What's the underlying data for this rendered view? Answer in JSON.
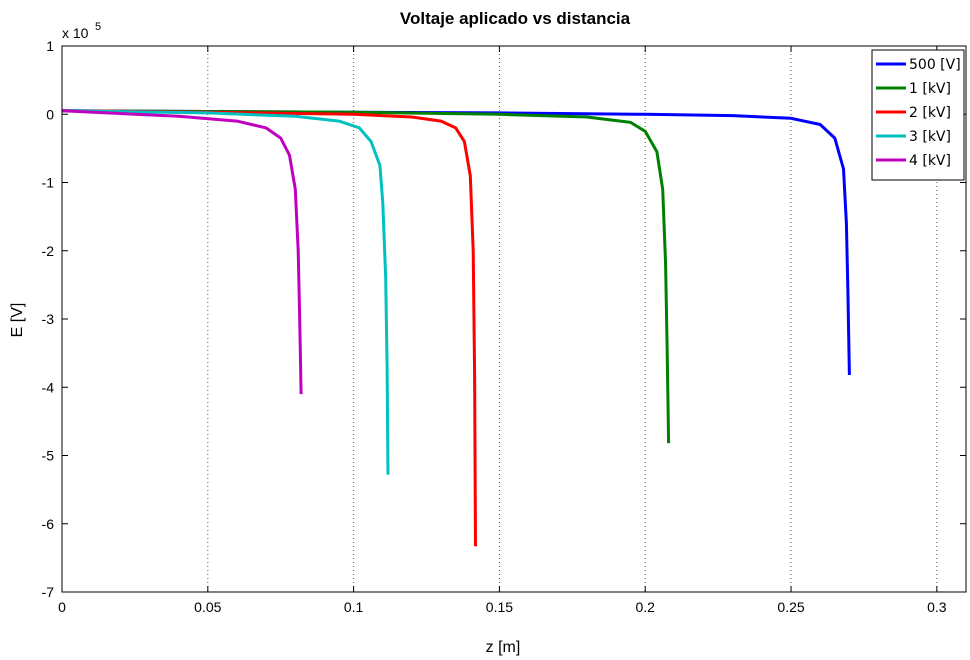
{
  "chart_data": {
    "type": "line",
    "title": "Voltaje aplicado vs distancia",
    "xlabel": "z [m]",
    "ylabel": "E [V]",
    "xlim": [
      0,
      0.31
    ],
    "ylim": [
      -7,
      1
    ],
    "y_multiplier_label": "x 10",
    "y_multiplier_exponent": "5",
    "x_ticks": [
      0,
      0.05,
      0.1,
      0.15,
      0.2,
      0.25,
      0.3
    ],
    "x_tick_labels": [
      "0",
      "0.05",
      "0.1",
      "0.15",
      "0.2",
      "0.25",
      "0.3"
    ],
    "y_ticks": [
      1,
      0,
      -1,
      -2,
      -3,
      -4,
      -5,
      -6,
      -7
    ],
    "y_tick_labels": [
      "1",
      "0",
      "-1",
      "-2",
      "-3",
      "-4",
      "-5",
      "-6",
      "-7"
    ],
    "grid": {
      "x": "dotted",
      "y": "none"
    },
    "legend_position": "top-right",
    "series": [
      {
        "name": "500 [V]",
        "color": "#0000ff",
        "x": [
          0,
          0.05,
          0.1,
          0.15,
          0.2,
          0.23,
          0.25,
          0.26,
          0.265,
          0.268,
          0.269,
          0.2695,
          0.27
        ],
        "y": [
          0.05,
          0.04,
          0.03,
          0.02,
          0.0,
          -0.02,
          -0.06,
          -0.15,
          -0.35,
          -0.8,
          -1.6,
          -2.6,
          -3.82
        ]
      },
      {
        "name": "1 [kV]",
        "color": "#008000",
        "x": [
          0,
          0.05,
          0.1,
          0.15,
          0.18,
          0.195,
          0.2,
          0.204,
          0.206,
          0.207,
          0.2075,
          0.208
        ],
        "y": [
          0.05,
          0.04,
          0.03,
          0.0,
          -0.04,
          -0.12,
          -0.25,
          -0.55,
          -1.1,
          -2.2,
          -3.4,
          -4.82
        ]
      },
      {
        "name": "2 [kV]",
        "color": "#ff0000",
        "x": [
          0,
          0.05,
          0.1,
          0.12,
          0.13,
          0.135,
          0.138,
          0.14,
          0.141,
          0.1415,
          0.1418
        ],
        "y": [
          0.05,
          0.03,
          0.0,
          -0.04,
          -0.1,
          -0.2,
          -0.4,
          -0.9,
          -2.0,
          -3.8,
          -6.33
        ]
      },
      {
        "name": "3 [kV]",
        "color": "#00c0c0",
        "x": [
          0,
          0.05,
          0.08,
          0.095,
          0.102,
          0.106,
          0.109,
          0.11,
          0.111,
          0.1115,
          0.1118
        ],
        "y": [
          0.05,
          0.02,
          -0.03,
          -0.1,
          -0.2,
          -0.4,
          -0.75,
          -1.3,
          -2.4,
          -3.7,
          -5.28
        ]
      },
      {
        "name": "4 [kV]",
        "color": "#bf00bf",
        "x": [
          0,
          0.04,
          0.06,
          0.07,
          0.075,
          0.078,
          0.08,
          0.081,
          0.0815,
          0.082
        ],
        "y": [
          0.05,
          -0.03,
          -0.1,
          -0.2,
          -0.35,
          -0.6,
          -1.1,
          -2.0,
          -3.0,
          -4.1
        ]
      }
    ]
  }
}
